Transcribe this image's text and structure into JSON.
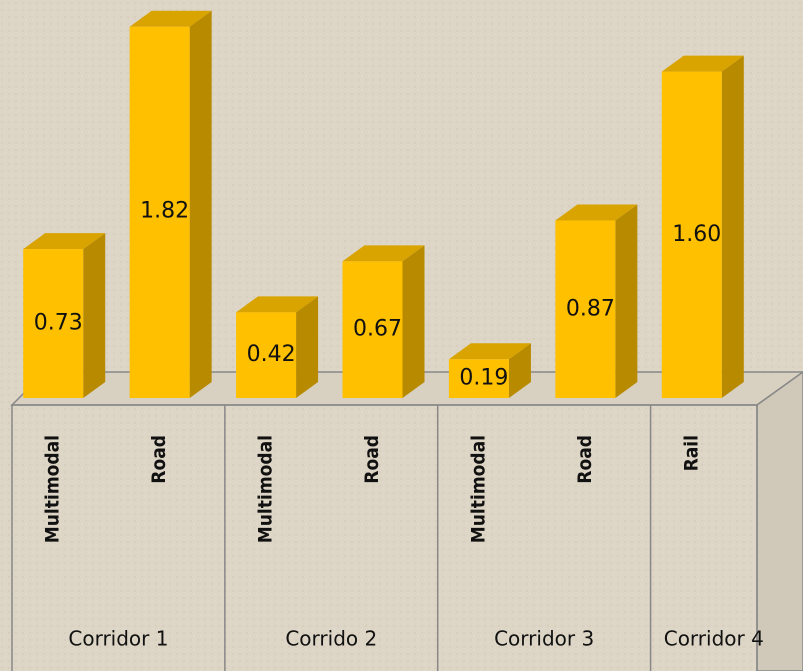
{
  "chart_data": {
    "type": "bar",
    "color": "#ffc000",
    "groups": [
      {
        "name": "Corridor 1",
        "categories": [
          "Multimodal",
          "Road"
        ],
        "values": [
          0.73,
          1.82
        ],
        "value_labels": [
          "0.73",
          "1.82"
        ]
      },
      {
        "name": "Corrido 2",
        "categories": [
          "Multimodal",
          "Road"
        ],
        "values": [
          0.42,
          0.67
        ],
        "value_labels": [
          "0.42",
          "0.67"
        ]
      },
      {
        "name": "Corridor 3",
        "categories": [
          "Multimodal",
          "Road"
        ],
        "values": [
          0.19,
          0.87
        ],
        "value_labels": [
          "0.19",
          "0.87"
        ]
      },
      {
        "name": "Corridor 4",
        "categories": [
          "Rail"
        ],
        "values": [
          1.6
        ],
        "value_labels": [
          "1.60"
        ]
      }
    ]
  }
}
